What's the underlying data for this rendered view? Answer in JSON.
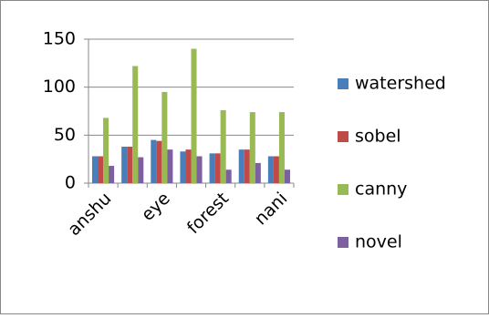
{
  "chart_data": {
    "type": "bar",
    "categories": [
      "anshu",
      null,
      "eye",
      null,
      "forest",
      null,
      "nani"
    ],
    "series": [
      {
        "name": "watershed",
        "color": "#4a7ebb",
        "values": [
          28,
          38,
          45,
          33,
          31,
          35,
          28
        ]
      },
      {
        "name": "sobel",
        "color": "#be4b48",
        "values": [
          28,
          38,
          44,
          35,
          31,
          35,
          28
        ]
      },
      {
        "name": "canny",
        "color": "#98b954",
        "values": [
          68,
          122,
          95,
          140,
          76,
          74,
          74
        ]
      },
      {
        "name": "novel",
        "color": "#7d60a0",
        "values": [
          18,
          27,
          35,
          28,
          14,
          21,
          14
        ]
      }
    ],
    "ylim": [
      0,
      150
    ],
    "yticks": [
      0,
      50,
      100,
      150
    ],
    "grid": true,
    "legend": "right"
  }
}
